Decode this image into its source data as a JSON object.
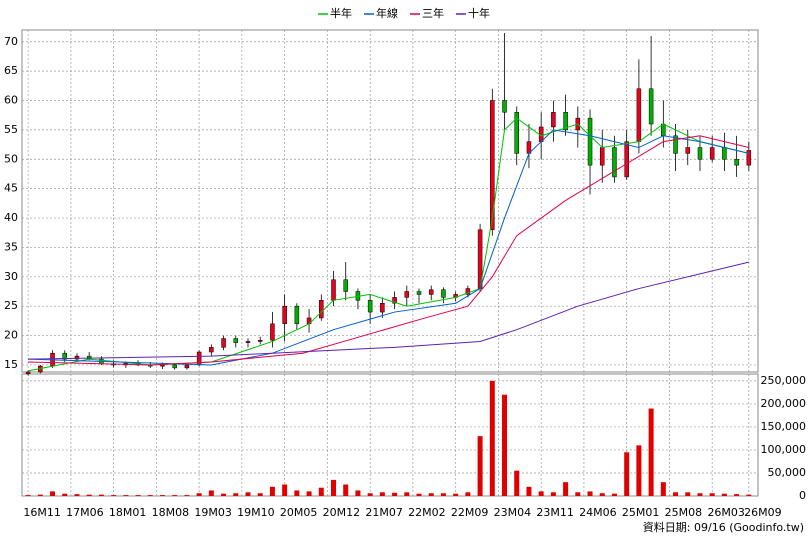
{
  "chart_data": [
    {
      "type": "candlestick",
      "x": [
        0,
        2,
        4,
        6,
        8,
        10,
        12,
        14,
        16,
        18,
        20,
        22,
        24,
        26,
        28,
        30,
        32,
        34,
        36,
        38,
        40,
        42,
        44,
        46,
        48,
        50,
        52,
        54,
        56,
        58,
        60,
        62,
        64,
        66,
        68,
        70,
        72,
        74,
        76,
        78,
        80,
        82,
        84,
        86,
        88,
        90,
        92,
        94,
        96,
        98,
        100,
        102,
        104,
        106,
        108,
        110,
        112,
        114,
        116,
        118
      ],
      "open": [
        13.5,
        13.8,
        14.8,
        17,
        16,
        16.5,
        16,
        15.2,
        15,
        15.3,
        15,
        14.8,
        15,
        14.5,
        15,
        17.2,
        18,
        19.5,
        18.8,
        19,
        19.2,
        22,
        25,
        22,
        23,
        26,
        29.5,
        27.5,
        26,
        24,
        25.5,
        26.5,
        27.5,
        27,
        27.8,
        26.5,
        27,
        28,
        38,
        60,
        58,
        51,
        53,
        55.5,
        58,
        55,
        57,
        49,
        52,
        47,
        53,
        62,
        56,
        54,
        51,
        52,
        50,
        52,
        50,
        49
      ],
      "high": [
        14,
        15,
        17.5,
        17.5,
        17,
        17.2,
        16.5,
        15.8,
        15.6,
        15.8,
        15.5,
        15.4,
        15.3,
        15.2,
        17.5,
        18.5,
        20,
        20,
        19.5,
        19.8,
        24,
        27,
        25.5,
        24.5,
        27,
        31,
        32.5,
        28,
        27,
        26.5,
        27.5,
        28.5,
        28,
        28.5,
        28.2,
        27.5,
        28.5,
        39,
        62,
        71.5,
        59,
        56,
        58,
        60,
        61,
        59,
        58.5,
        55,
        54,
        55,
        67,
        71,
        60,
        56,
        55,
        54,
        54,
        54.5,
        54,
        53
      ],
      "low": [
        13.2,
        13.6,
        14.5,
        15.5,
        15.5,
        15.8,
        15,
        14.6,
        14.5,
        14.8,
        14.5,
        14.3,
        14.2,
        14.2,
        14.8,
        16.5,
        17.5,
        18,
        18,
        18.5,
        18,
        19,
        21,
        20.5,
        22.5,
        25,
        26,
        24.5,
        22,
        23,
        24.5,
        25,
        25.5,
        26,
        25.5,
        25.8,
        26.5,
        27.5,
        37,
        55,
        49,
        48.5,
        50,
        53,
        54,
        52,
        44,
        46,
        46,
        46.5,
        51,
        54,
        52,
        48,
        49,
        48,
        49.5,
        48,
        47,
        48
      ],
      "close": [
        13.8,
        14.8,
        17,
        16,
        16.5,
        16,
        15.2,
        15,
        15.3,
        15,
        14.8,
        15,
        14.5,
        15,
        17.2,
        18,
        19.5,
        18.8,
        19,
        19.2,
        22,
        25,
        22,
        23,
        26,
        29.5,
        27.5,
        26,
        24,
        25.5,
        26.5,
        27.5,
        27,
        27.8,
        26.5,
        27,
        28,
        38,
        60,
        58,
        51,
        53,
        55.5,
        58,
        55,
        57,
        49,
        52,
        47,
        53,
        62,
        56,
        54,
        51,
        52,
        50,
        52,
        50,
        49,
        51.5
      ],
      "up_color": "#e8001c",
      "down_color": "#00b000",
      "series": [
        {
          "name": "半年",
          "color": "#00c000",
          "x": [
            0,
            10,
            20,
            30,
            40,
            46,
            50,
            56,
            62,
            70,
            74,
            76,
            78,
            80,
            84,
            90,
            94,
            100,
            104,
            110,
            118
          ],
          "values": [
            14,
            16,
            15,
            15.5,
            19,
            22,
            26,
            27,
            25,
            26.5,
            28,
            40,
            55,
            57,
            54,
            56,
            52,
            53,
            56,
            53,
            51
          ]
        },
        {
          "name": "年線",
          "color": "#0060d0",
          "x": [
            0,
            15,
            30,
            40,
            50,
            60,
            70,
            74,
            78,
            82,
            86,
            92,
            100,
            104,
            110,
            118
          ],
          "values": [
            16,
            15.5,
            15,
            17,
            21,
            24,
            25.5,
            28,
            40,
            51,
            55,
            54,
            52,
            54,
            53,
            51
          ]
        },
        {
          "name": "三年",
          "color": "#e0004c",
          "x": [
            0,
            20,
            30,
            45,
            55,
            65,
            72,
            76,
            80,
            88,
            96,
            104,
            110,
            118
          ],
          "values": [
            15.5,
            15,
            15.5,
            17,
            20,
            23,
            25,
            30,
            37,
            43,
            48,
            53,
            54,
            52
          ]
        },
        {
          "name": "十年",
          "color": "#6020b0",
          "x": [
            0,
            30,
            50,
            60,
            74,
            80,
            90,
            100,
            110,
            118
          ],
          "values": [
            16,
            16.5,
            17.5,
            18,
            19,
            21,
            25,
            28,
            30.5,
            32.5
          ]
        }
      ],
      "xlim": [
        -1,
        119.5
      ],
      "ylim": [
        13.8,
        72
      ],
      "yticks": [
        15,
        20,
        25,
        30,
        35,
        40,
        45,
        50,
        55,
        60,
        65,
        70
      ],
      "grid": true,
      "legend": "top"
    },
    {
      "type": "bar",
      "x": [
        0,
        2,
        4,
        6,
        8,
        10,
        12,
        14,
        16,
        18,
        20,
        22,
        24,
        26,
        28,
        30,
        32,
        34,
        36,
        38,
        40,
        42,
        44,
        46,
        48,
        50,
        52,
        54,
        56,
        58,
        60,
        62,
        64,
        66,
        68,
        70,
        72,
        74,
        76,
        78,
        80,
        82,
        84,
        86,
        88,
        90,
        92,
        94,
        96,
        98,
        100,
        102,
        104,
        106,
        108,
        110,
        112,
        114,
        116,
        118
      ],
      "values": [
        2000,
        3000,
        10000,
        5000,
        4000,
        3000,
        3000,
        2000,
        2000,
        2000,
        2000,
        2000,
        2000,
        2000,
        6000,
        12000,
        5000,
        6000,
        8000,
        6000,
        20000,
        25000,
        12000,
        10000,
        18000,
        35000,
        25000,
        12000,
        6000,
        8000,
        7000,
        8000,
        5000,
        6000,
        6000,
        5000,
        8000,
        130000,
        250000,
        220000,
        55000,
        20000,
        10000,
        8000,
        30000,
        8000,
        10000,
        6000,
        5000,
        95000,
        110000,
        190000,
        30000,
        8000,
        8000,
        6000,
        6000,
        5000,
        4000,
        3000
      ],
      "color": "#e00000",
      "xlim": [
        -1,
        119.5
      ],
      "ylim": [
        0,
        265000
      ],
      "yticks": [
        0,
        {
          "value": 50000,
          "label": "50,000"
        },
        {
          "value": 100000,
          "label": "100,000"
        },
        {
          "value": 150000,
          "label": "150,000"
        },
        {
          "value": 200000,
          "label": "200,000"
        },
        {
          "value": 250000,
          "label": "250,000"
        }
      ],
      "xticks": [
        {
          "value": 0,
          "label": "16M11"
        },
        {
          "value": 7,
          "label": "17M06"
        },
        {
          "value": 14,
          "label": "18M01"
        },
        {
          "value": 21,
          "label": "18M08"
        },
        {
          "value": 28,
          "label": "19M03"
        },
        {
          "value": 35,
          "label": "19M10"
        },
        {
          "value": 42,
          "label": "20M05"
        },
        {
          "value": 49,
          "label": "20M12"
        },
        {
          "value": 56,
          "label": "21M07"
        },
        {
          "value": 63,
          "label": "22M02"
        },
        {
          "value": 70,
          "label": "22M09"
        },
        {
          "value": 77,
          "label": "23M04"
        },
        {
          "value": 84,
          "label": "23M11"
        },
        {
          "value": 91,
          "label": "24M06"
        },
        {
          "value": 98,
          "label": "25M01"
        },
        {
          "value": 105,
          "label": "25M08"
        },
        {
          "value": 112,
          "label": "26M03"
        },
        {
          "value": 118,
          "label": "26M09"
        }
      ],
      "grid": true,
      "annotation": "資料日期: 09/16 (Goodinfo.tw)"
    }
  ]
}
